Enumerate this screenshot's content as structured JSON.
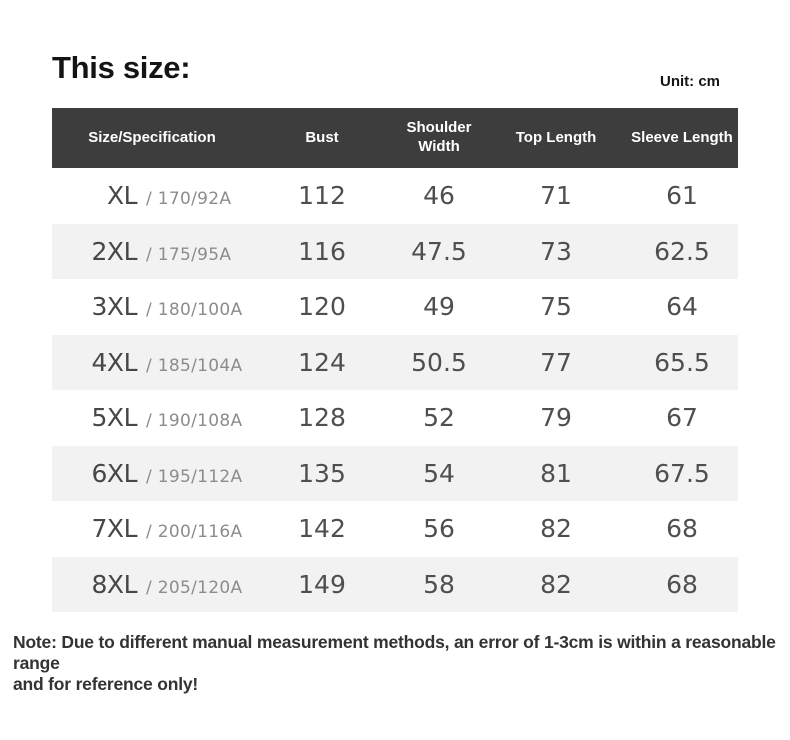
{
  "page": {
    "title": "This size:",
    "unit_label": "Unit: cm",
    "note_lines": [
      "Note: Due to different manual measurement methods, an error of 1-3cm is within a reasonable range",
      "and for reference only!"
    ]
  },
  "table": {
    "columns": [
      "Size/Specification",
      "Bust",
      "Shoulder Width",
      "Top Length",
      "Sleeve Length"
    ],
    "rows": [
      {
        "size": "XL",
        "spec": "/ 170/92A",
        "bust": "112",
        "shoulder_width": "46",
        "top_length": "71",
        "sleeve_length": "61"
      },
      {
        "size": "2XL",
        "spec": "/ 175/95A",
        "bust": "116",
        "shoulder_width": "47.5",
        "top_length": "73",
        "sleeve_length": "62.5"
      },
      {
        "size": "3XL",
        "spec": "/ 180/100A",
        "bust": "120",
        "shoulder_width": "49",
        "top_length": "75",
        "sleeve_length": "64"
      },
      {
        "size": "4XL",
        "spec": "/ 185/104A",
        "bust": "124",
        "shoulder_width": "50.5",
        "top_length": "77",
        "sleeve_length": "65.5"
      },
      {
        "size": "5XL",
        "spec": "/ 190/108A",
        "bust": "128",
        "shoulder_width": "52",
        "top_length": "79",
        "sleeve_length": "67"
      },
      {
        "size": "6XL",
        "spec": "/ 195/112A",
        "bust": "135",
        "shoulder_width": "54",
        "top_length": "81",
        "sleeve_length": "67.5"
      },
      {
        "size": "7XL",
        "spec": "/ 200/116A",
        "bust": "142",
        "shoulder_width": "56",
        "top_length": "82",
        "sleeve_length": "68"
      },
      {
        "size": "8XL",
        "spec": "/ 205/120A",
        "bust": "149",
        "shoulder_width": "58",
        "top_length": "82",
        "sleeve_length": "68"
      }
    ]
  },
  "colors": {
    "header_bg": "#3d3d3d",
    "header_text": "#ffffff",
    "row_bg": "#ffffff",
    "row_alt_bg": "#f2f2f2",
    "value_text": "#4f4f4f",
    "spec_text": "#8c8c8c",
    "title_text": "#141414",
    "note_text": "#333333"
  },
  "chart_data": {
    "type": "table",
    "title": "This size:",
    "unit": "cm",
    "columns": [
      "Size/Specification",
      "Bust",
      "Shoulder Width",
      "Top Length",
      "Sleeve Length"
    ],
    "rows": [
      [
        "XL / 170/92A",
        112,
        46,
        71,
        61
      ],
      [
        "2XL / 175/95A",
        116,
        47.5,
        73,
        62.5
      ],
      [
        "3XL / 180/100A",
        120,
        49,
        75,
        64
      ],
      [
        "4XL / 185/104A",
        124,
        50.5,
        77,
        65.5
      ],
      [
        "5XL / 190/108A",
        128,
        52,
        79,
        67
      ],
      [
        "6XL / 195/112A",
        135,
        54,
        81,
        67.5
      ],
      [
        "7XL / 200/116A",
        142,
        56,
        82,
        68
      ],
      [
        "8XL / 205/120A",
        149,
        58,
        82,
        68
      ]
    ],
    "note": "Note: Due to different manual measurement methods, an error of 1-3cm is within a reasonable range and for reference only!"
  }
}
